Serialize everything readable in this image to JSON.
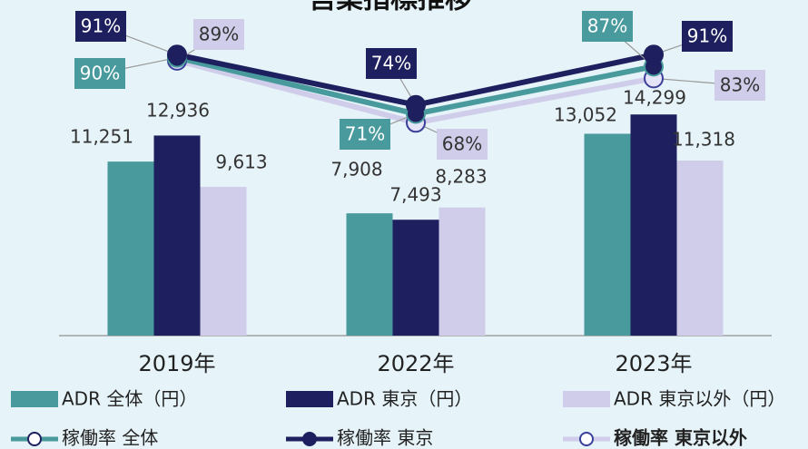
{
  "chart_data": {
    "type": "bar",
    "title": "営業指標推移",
    "categories": [
      "2019年",
      "2022年",
      "2023年"
    ],
    "ylim": [
      0,
      21700
    ],
    "y2lim": [
      -4,
      109.5
    ],
    "series": [
      {
        "name": "ADR 全体（円）",
        "type": "bar",
        "color": "#489a9c",
        "values": [
          11251,
          7908,
          13052
        ],
        "value_labels": [
          "11,251",
          "7,908",
          "13,052"
        ]
      },
      {
        "name": "ADR 東京（円）",
        "type": "bar",
        "color": "#1d1f5e",
        "values": [
          12936,
          7493,
          14299
        ],
        "value_labels": [
          "12,936",
          "7,493",
          "14,299"
        ]
      },
      {
        "name": "ADR 東京以外（円）",
        "type": "bar",
        "color": "#cfcdea",
        "values": [
          9613,
          8283,
          11318
        ],
        "value_labels": [
          "9,613",
          "8,283",
          "11,318"
        ]
      },
      {
        "name": "稼働率 全体",
        "type": "line",
        "axis": "y2",
        "color": "#489a9c",
        "values": [
          90,
          71,
          87
        ],
        "value_labels": [
          "90%",
          "71%",
          "87%"
        ]
      },
      {
        "name": "稼働率 東京",
        "type": "line",
        "axis": "y2",
        "color": "#1d1f5e",
        "values": [
          91,
          74,
          91
        ],
        "value_labels": [
          "91%",
          "74%",
          "91%"
        ]
      },
      {
        "name": "稼働率 東京以外",
        "type": "line",
        "axis": "y2",
        "color": "#cfcdea",
        "values": [
          89,
          68,
          83
        ],
        "value_labels": [
          "89%",
          "68%",
          "83%"
        ]
      }
    ]
  }
}
